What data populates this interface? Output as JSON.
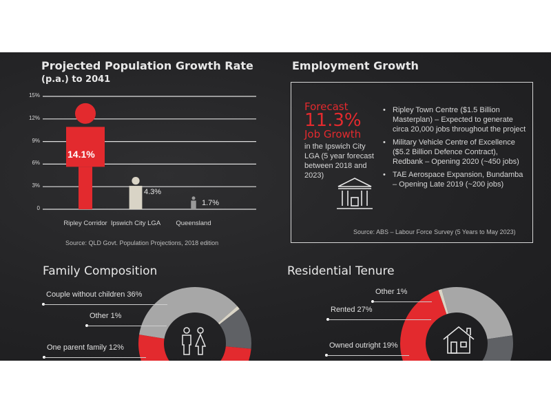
{
  "population": {
    "title_line1": "Projected Population Growth Rate",
    "title_line2": "(p.a.) to 2041",
    "source": "Source: QLD Govt. Population Projections, 2018 edition"
  },
  "chart_data": [
    {
      "type": "bar",
      "title": "Projected Population Growth Rate (p.a.) to 2041",
      "categories": [
        "Ripley Corridor",
        "Ipswich City LGA",
        "Queensland"
      ],
      "values": [
        14.1,
        4.3,
        1.7
      ],
      "value_labels": [
        "14.1%",
        "4.3%",
        "1.7%"
      ],
      "yticks": [
        "15%",
        "12%",
        "9%",
        "6%",
        "3%",
        "0"
      ],
      "ylim": [
        0,
        15
      ],
      "colors": [
        "#e32a2e",
        "#d9d4c6",
        "#9a9a9a"
      ]
    },
    {
      "type": "pie",
      "title": "Family Composition",
      "labels": [
        "Couple without children 36%",
        "Other 1%",
        "One parent family 12%"
      ],
      "slices": [
        {
          "label": "Couple without children",
          "value": 36,
          "color": "#a7a7a7"
        },
        {
          "label": "Other",
          "value": 1,
          "color": "#d9d4c6"
        },
        {
          "label": "One parent family",
          "value": 12,
          "color": "#5f6165"
        },
        {
          "label": "",
          "value": 51,
          "color": "#e32a2e"
        }
      ]
    },
    {
      "type": "pie",
      "title": "Residential Tenure",
      "labels": [
        "Other 1%",
        "Rented 27%",
        "Owned outright 19%"
      ],
      "slices": [
        {
          "label": "Other",
          "value": 1,
          "color": "#d9d4c6"
        },
        {
          "label": "Rented",
          "value": 27,
          "color": "#a7a7a7"
        },
        {
          "label": "Owned outright",
          "value": 19,
          "color": "#5f6165"
        },
        {
          "label": "",
          "value": 53,
          "color": "#e32a2e"
        }
      ]
    }
  ],
  "employment": {
    "title": "Employment Growth",
    "forecast": "Forecast",
    "growth": "11.3%",
    "job_growth": "Job Growth",
    "description": "in the Ipswich City LGA (5 year forecast between 2018 and 2023)",
    "bullets": [
      "Ripley Town Centre ($1.5 Billion Masterplan) – Expected to generate circa 20,000 jobs throughout the project",
      "Military Vehicle Centre of Excellence ($5.2 Billion Defence Contract), Redbank – Opening 2020 (~450 jobs)",
      "TAE Aerospace Expansion, Bundamba – Opening Late 2019 (~200 jobs)"
    ],
    "source": "Source: ABS – Labour Force Survey (5 Years to May 2023)"
  },
  "family": {
    "title": "Family Composition"
  },
  "tenure": {
    "title": "Residential Tenure"
  },
  "colors": {
    "red": "#e32a2e",
    "cream": "#d9d4c6",
    "grey": "#a7a7a7",
    "dark": "#5f6165"
  },
  "icons": [
    "person-icon",
    "building-icon",
    "people-icon",
    "house-icon"
  ]
}
